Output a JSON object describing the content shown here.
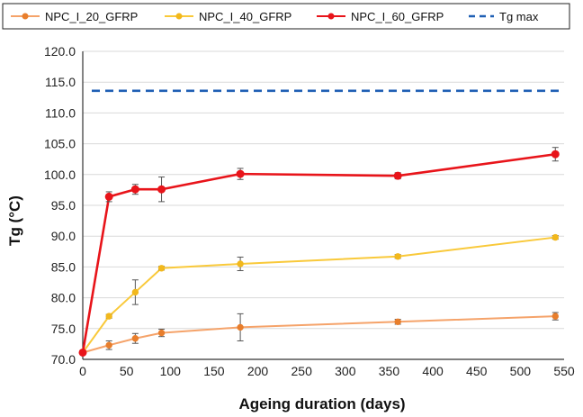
{
  "chart_data": {
    "type": "line",
    "xlabel": "Ageing duration (days)",
    "ylabel": "Tg (°C)",
    "xlim": [
      0,
      550
    ],
    "ylim": [
      70,
      120
    ],
    "xticks": [
      0,
      50,
      100,
      150,
      200,
      250,
      300,
      350,
      400,
      450,
      500,
      550
    ],
    "yticks": [
      70.0,
      75.0,
      80.0,
      85.0,
      90.0,
      95.0,
      100.0,
      105.0,
      110.0,
      115.0,
      120.0
    ],
    "grid": "horizontal",
    "legend_placement": "top",
    "series": [
      {
        "name": "NPC_I_20_GFRP",
        "color": "#f5a36a",
        "marker_color": "#e87e2c",
        "x": [
          0,
          30,
          60,
          90,
          180,
          360,
          540
        ],
        "y": [
          71.1,
          72.3,
          73.4,
          74.3,
          75.2,
          76.1,
          77.0
        ],
        "err": [
          0.3,
          0.7,
          0.8,
          0.6,
          2.2,
          0.4,
          0.6
        ]
      },
      {
        "name": "NPC_I_40_GFRP",
        "color": "#f9c93a",
        "marker_color": "#f2b81c",
        "x": [
          0,
          30,
          60,
          90,
          180,
          360,
          540
        ],
        "y": [
          71.1,
          77.0,
          80.9,
          84.8,
          85.5,
          86.7,
          89.8
        ],
        "err": [
          0.3,
          0.3,
          2.0,
          0.3,
          1.1,
          0.3,
          0.3
        ]
      },
      {
        "name": "NPC_I_60_GFRP",
        "color": "#e8141a",
        "marker_color": "#e8141a",
        "x": [
          0,
          30,
          60,
          90,
          180,
          360,
          540
        ],
        "y": [
          71.1,
          96.4,
          97.6,
          97.6,
          100.1,
          99.8,
          103.3
        ],
        "err": [
          0.3,
          0.8,
          0.8,
          2.0,
          0.9,
          0.5,
          1.1
        ]
      },
      {
        "name": "Tg max",
        "color": "#1f5fb4",
        "style": "dashed",
        "y_constant": 113.6
      }
    ]
  }
}
